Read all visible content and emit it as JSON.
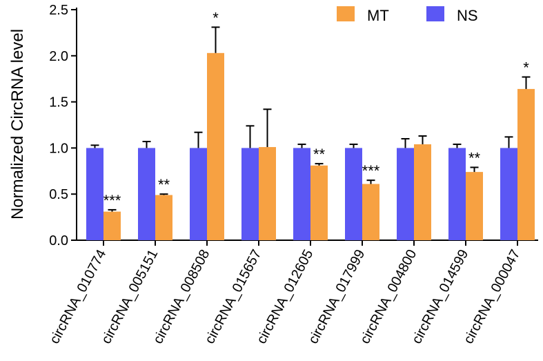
{
  "chart_data": {
    "type": "bar",
    "title": "",
    "xlabel": "",
    "ylabel": "Normalized CircRNA level",
    "ylim": [
      0,
      2.5
    ],
    "yticks": [
      "0.0",
      "0.5",
      "1.0",
      "1.5",
      "2.0",
      "2.5"
    ],
    "legend_position": "top-right",
    "categories": [
      "circRNA_010774",
      "circRNA_005151",
      "circRNA_008508",
      "circRNA_015657",
      "circRNA_012605",
      "circRNA_017999",
      "circRNA_004800",
      "circRNA_014599",
      "circRNA_000047"
    ],
    "series": [
      {
        "name": "NS",
        "color": "#5b57f4",
        "values": [
          1.0,
          1.0,
          1.0,
          1.0,
          1.0,
          1.0,
          1.0,
          1.0,
          1.0
        ],
        "errors": [
          0.03,
          0.07,
          0.17,
          0.24,
          0.04,
          0.04,
          0.1,
          0.04,
          0.12
        ]
      },
      {
        "name": "MT",
        "color": "#f7a142",
        "values": [
          0.31,
          0.49,
          2.03,
          1.01,
          0.81,
          0.61,
          1.04,
          0.74,
          1.64
        ],
        "errors": [
          0.02,
          0.01,
          0.28,
          0.41,
          0.02,
          0.04,
          0.09,
          0.05,
          0.13
        ]
      }
    ],
    "significance": [
      "***",
      "**",
      "*",
      "",
      "**",
      "***",
      "",
      "**",
      "*"
    ]
  },
  "legend": {
    "items": [
      {
        "label": "MT",
        "color": "#f7a142"
      },
      {
        "label": "NS",
        "color": "#5b57f4"
      }
    ]
  }
}
